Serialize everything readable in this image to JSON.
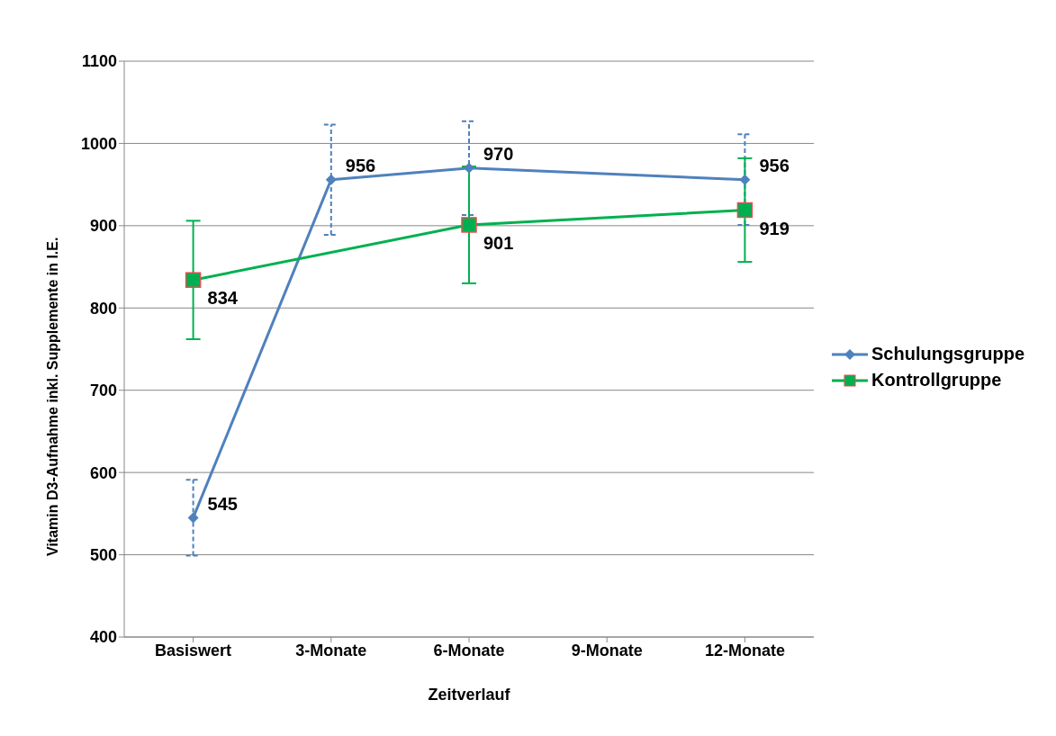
{
  "chart_data": {
    "type": "line",
    "xlabel": "Zeitverlauf",
    "ylabel": "Vitamin D3-Aufnahme  inkl. Supplemente in I.E.",
    "categories": [
      "Basiswert",
      "3-Monate",
      "6-Monate",
      "9-Monate",
      "12-Monate"
    ],
    "series": [
      {
        "name": "Schulungsgruppe",
        "color": "#4f81bd",
        "marker": "diamond",
        "values": [
          545,
          956,
          970,
          null,
          956
        ],
        "errors": [
          46,
          67,
          57,
          null,
          55
        ]
      },
      {
        "name": "Kontrollgruppe",
        "color": "#00b050",
        "marker": "square",
        "values": [
          834,
          null,
          901,
          null,
          919
        ],
        "errors": [
          72,
          null,
          71,
          null,
          63
        ]
      }
    ],
    "ylim": [
      400,
      1100
    ],
    "yticks": [
      400,
      500,
      600,
      700,
      800,
      900,
      1000,
      1100
    ],
    "grid": "y",
    "legend": "right",
    "data_labels": true
  }
}
